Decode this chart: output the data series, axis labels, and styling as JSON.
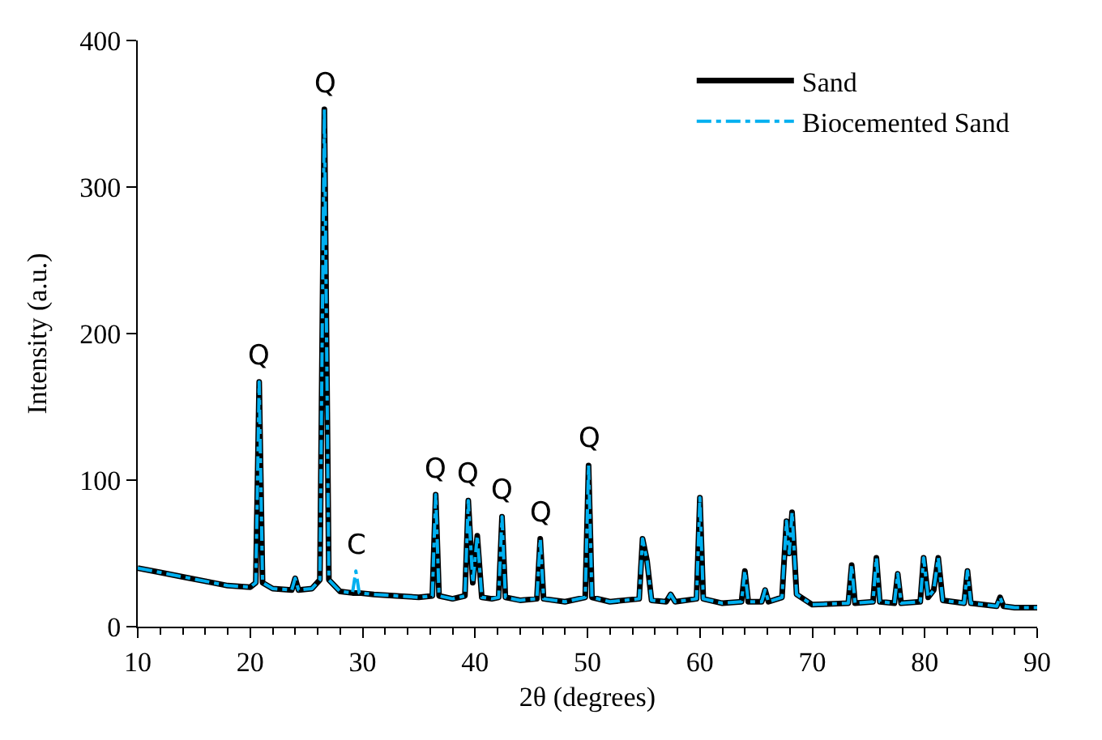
{
  "chart_data": {
    "type": "line",
    "xlabel": "2θ (degrees)",
    "ylabel": "Intensity (a.u.)",
    "xlim": [
      10,
      90
    ],
    "xticks": [
      10,
      20,
      30,
      40,
      50,
      60,
      70,
      80,
      90
    ],
    "ylim": [
      0,
      400
    ],
    "yticks": [
      0,
      100,
      200,
      300,
      400
    ],
    "legend": "top right",
    "marker": "none",
    "x": [
      10,
      12,
      14,
      16,
      18,
      20,
      20.5,
      20.8,
      21.1,
      22,
      23.7,
      24,
      24.3,
      25.5,
      26.2,
      26.6,
      27,
      28,
      29.1,
      29.4,
      29.7,
      31,
      33,
      35,
      36.2,
      36.5,
      36.8,
      38,
      39.1,
      39.4,
      39.8,
      40.2,
      40.6,
      41.5,
      42.1,
      42.4,
      42.7,
      44,
      45.5,
      45.8,
      46.1,
      48,
      49.8,
      50.1,
      50.4,
      52,
      54.6,
      54.9,
      55.3,
      55.7,
      57,
      57.4,
      57.8,
      59.7,
      60,
      60.3,
      62,
      63.7,
      64,
      64.3,
      65.5,
      65.8,
      66.1,
      67.3,
      67.7,
      67.95,
      68.2,
      68.6,
      70,
      73.2,
      73.5,
      73.8,
      75.4,
      75.7,
      76,
      77.3,
      77.6,
      77.9,
      79.6,
      79.9,
      80.3,
      80.8,
      81.2,
      81.6,
      83.5,
      83.8,
      84.1,
      86.4,
      86.7,
      87,
      88,
      90
    ],
    "series": [
      {
        "name": "Sand",
        "color": "#000000",
        "line_style": "solid",
        "values": [
          40,
          37,
          34,
          31,
          28,
          27,
          30,
          167,
          30,
          26,
          25,
          33,
          25,
          26,
          32,
          353,
          32,
          24,
          23,
          23,
          23,
          22,
          21,
          20,
          21,
          90,
          21,
          19,
          21,
          86,
          30,
          62,
          20,
          19,
          20,
          75,
          20,
          18,
          19,
          60,
          19,
          17,
          20,
          110,
          20,
          17,
          19,
          60,
          45,
          18,
          17,
          22,
          17,
          19,
          88,
          19,
          16,
          17,
          38,
          17,
          17,
          25,
          17,
          20,
          72,
          50,
          78,
          22,
          15,
          16,
          42,
          16,
          17,
          47,
          17,
          16,
          36,
          16,
          17,
          47,
          20,
          25,
          47,
          18,
          16,
          38,
          16,
          14,
          20,
          14,
          13,
          13
        ]
      },
      {
        "name": "Biocemented Sand",
        "color": "#00b0f0",
        "line_style": "dashdot",
        "values": [
          40,
          37,
          34,
          31,
          28,
          27,
          30,
          167,
          30,
          26,
          25,
          33,
          25,
          26,
          32,
          353,
          32,
          24,
          23,
          38,
          23,
          22,
          21,
          20,
          21,
          90,
          21,
          19,
          21,
          86,
          30,
          62,
          20,
          19,
          20,
          75,
          20,
          18,
          19,
          60,
          19,
          17,
          20,
          110,
          20,
          17,
          19,
          60,
          45,
          18,
          17,
          22,
          17,
          19,
          88,
          19,
          16,
          17,
          38,
          17,
          17,
          25,
          17,
          20,
          72,
          50,
          78,
          22,
          15,
          16,
          42,
          16,
          17,
          47,
          17,
          16,
          36,
          16,
          17,
          47,
          20,
          25,
          47,
          18,
          16,
          38,
          16,
          14,
          20,
          14,
          13,
          13
        ]
      }
    ],
    "annotations": [
      {
        "text": "Q",
        "x": 20.8,
        "y": 167
      },
      {
        "text": "Q",
        "x": 26.6,
        "y": 353
      },
      {
        "text": "C",
        "x": 29.4,
        "y": 38
      },
      {
        "text": "Q",
        "x": 36.5,
        "y": 90
      },
      {
        "text": "Q",
        "x": 39.4,
        "y": 86
      },
      {
        "text": "Q",
        "x": 42.4,
        "y": 75
      },
      {
        "text": "Q",
        "x": 45.8,
        "y": 60
      },
      {
        "text": "Q",
        "x": 50.1,
        "y": 110
      }
    ]
  }
}
